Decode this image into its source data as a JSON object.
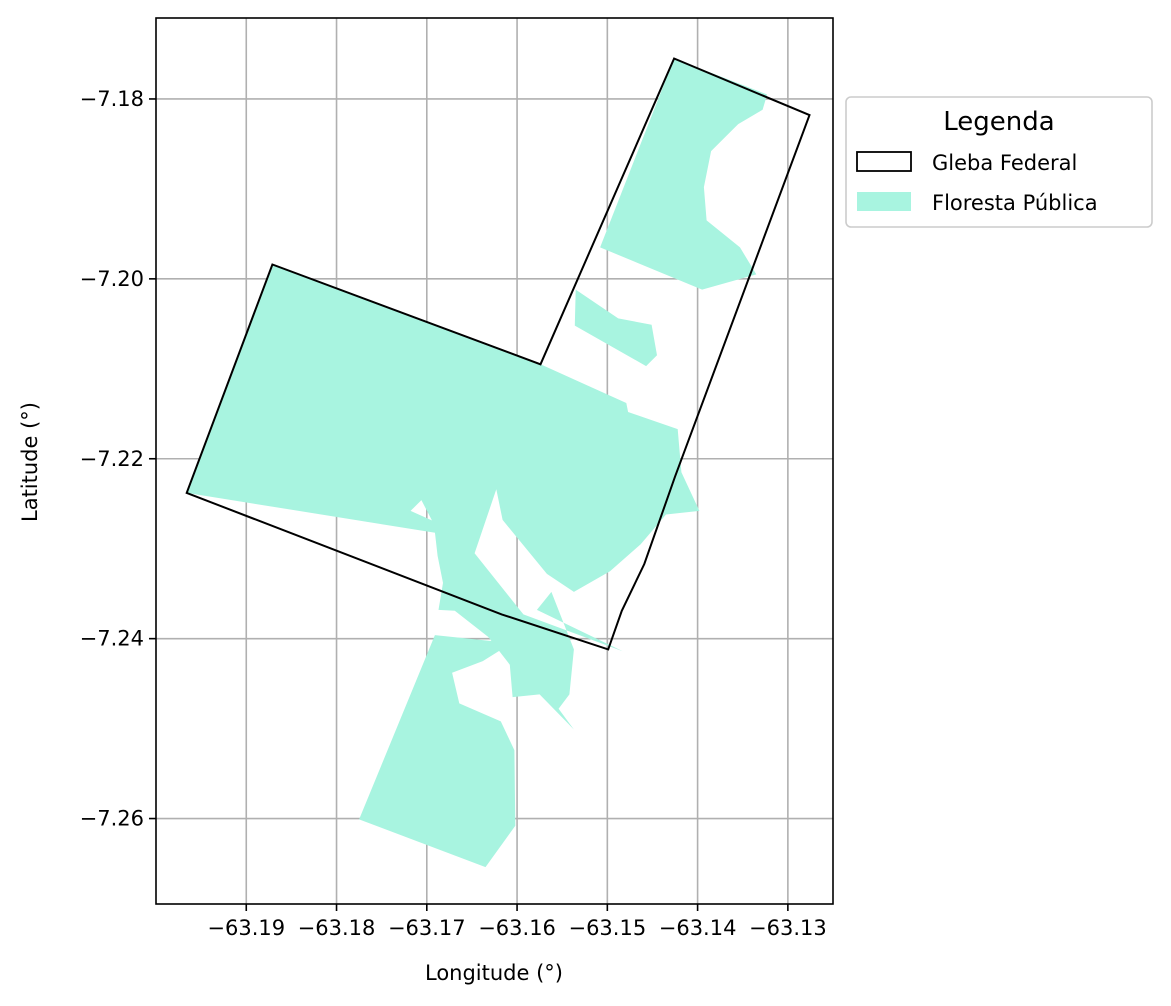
{
  "chart_data": {
    "type": "map",
    "xlabel": "Longitude (°)",
    "ylabel": "Latitude (°)",
    "xlim": [
      -63.2,
      -63.125
    ],
    "ylim": [
      -7.2695,
      -7.171
    ],
    "xticks": [
      -63.19,
      -63.18,
      -63.17,
      -63.16,
      -63.15,
      -63.14,
      -63.13
    ],
    "xtick_labels": [
      "−63.19",
      "−63.18",
      "−63.17",
      "−63.16",
      "−63.15",
      "−63.14",
      "−63.13"
    ],
    "yticks": [
      -7.18,
      -7.2,
      -7.22,
      -7.24,
      -7.26
    ],
    "ytick_labels": [
      "−7.18",
      "−7.20",
      "−7.22",
      "−7.24",
      "−7.26"
    ],
    "grid": true,
    "legend": {
      "title": "Legenda",
      "placement": "outside-right",
      "entries": [
        {
          "label": "Gleba Federal",
          "style": "outline",
          "edge_color": "#000000"
        },
        {
          "label": "Floresta Pública",
          "style": "fill",
          "fill_color": "#a8f4e0"
        }
      ]
    },
    "gleba_federal": {
      "name": "Gleba Federal",
      "polygon": [
        [
          -63.1426,
          -7.1755
        ],
        [
          -63.1276,
          -7.1818
        ],
        [
          -63.1425,
          -7.222
        ],
        [
          -63.1459,
          -7.2317
        ],
        [
          -63.1484,
          -7.2369
        ],
        [
          -63.1499,
          -7.2412
        ],
        [
          -63.1617,
          -7.2373
        ],
        [
          -63.1966,
          -7.2238
        ],
        [
          -63.1871,
          -7.1984
        ],
        [
          -63.1574,
          -7.2095
        ],
        [
          -63.1426,
          -7.1755
        ]
      ]
    },
    "floresta_publica": {
      "name": "Floresta Pública",
      "polygons": [
        [
          [
            -63.1426,
            -7.1755
          ],
          [
            -63.1323,
            -7.1795
          ],
          [
            -63.1328,
            -7.1812
          ],
          [
            -63.1355,
            -7.1828
          ],
          [
            -63.1385,
            -7.1858
          ],
          [
            -63.1393,
            -7.1898
          ],
          [
            -63.139,
            -7.1935
          ],
          [
            -63.1353,
            -7.1965
          ],
          [
            -63.1335,
            -7.1995
          ],
          [
            -63.1395,
            -7.2012
          ],
          [
            -63.1508,
            -7.1965
          ]
        ],
        [
          [
            -63.1535,
            -7.2012
          ],
          [
            -63.1488,
            -7.2044
          ],
          [
            -63.1451,
            -7.2051
          ],
          [
            -63.1445,
            -7.2085
          ],
          [
            -63.1457,
            -7.2097
          ],
          [
            -63.1536,
            -7.2052
          ]
        ],
        [
          [
            -63.1871,
            -7.1984
          ],
          [
            -63.1574,
            -7.2095
          ],
          [
            -63.1479,
            -7.2138
          ],
          [
            -63.1477,
            -7.2148
          ],
          [
            -63.1422,
            -7.2167
          ],
          [
            -63.1418,
            -7.2215
          ],
          [
            -63.1398,
            -7.2258
          ],
          [
            -63.1435,
            -7.2262
          ],
          [
            -63.1463,
            -7.2295
          ],
          [
            -63.1497,
            -7.2325
          ],
          [
            -63.1537,
            -7.2348
          ],
          [
            -63.1567,
            -7.2328
          ],
          [
            -63.1616,
            -7.2268
          ],
          [
            -63.1623,
            -7.2234
          ],
          [
            -63.1647,
            -7.2305
          ],
          [
            -63.1593,
            -7.2373
          ],
          [
            -63.1483,
            -7.2414
          ],
          [
            -63.1578,
            -7.2368
          ],
          [
            -63.1562,
            -7.2348
          ],
          [
            -63.1537,
            -7.2412
          ],
          [
            -63.1542,
            -7.2462
          ],
          [
            -63.1554,
            -7.2478
          ],
          [
            -63.1537,
            -7.2501
          ],
          [
            -63.1575,
            -7.2462
          ],
          [
            -63.1605,
            -7.2465
          ],
          [
            -63.1608,
            -7.2429
          ],
          [
            -63.1632,
            -7.2398
          ],
          [
            -63.1669,
            -7.2369
          ],
          [
            -63.1687,
            -7.2368
          ],
          [
            -63.1682,
            -7.2338
          ],
          [
            -63.1688,
            -7.2308
          ],
          [
            -63.1692,
            -7.2273
          ],
          [
            -63.1706,
            -7.2246
          ],
          [
            -63.1718,
            -7.2258
          ],
          [
            -63.1649,
            -7.2289
          ],
          [
            -63.1966,
            -7.2238
          ]
        ],
        [
          [
            -63.1691,
            -7.2396
          ],
          [
            -63.1775,
            -7.2601
          ],
          [
            -63.1635,
            -7.2654
          ],
          [
            -63.1602,
            -7.2608
          ],
          [
            -63.1603,
            -7.2524
          ],
          [
            -63.1618,
            -7.2492
          ],
          [
            -63.1664,
            -7.2472
          ],
          [
            -63.1672,
            -7.2438
          ],
          [
            -63.1638,
            -7.2425
          ],
          [
            -63.1606,
            -7.2405
          ]
        ]
      ]
    }
  }
}
